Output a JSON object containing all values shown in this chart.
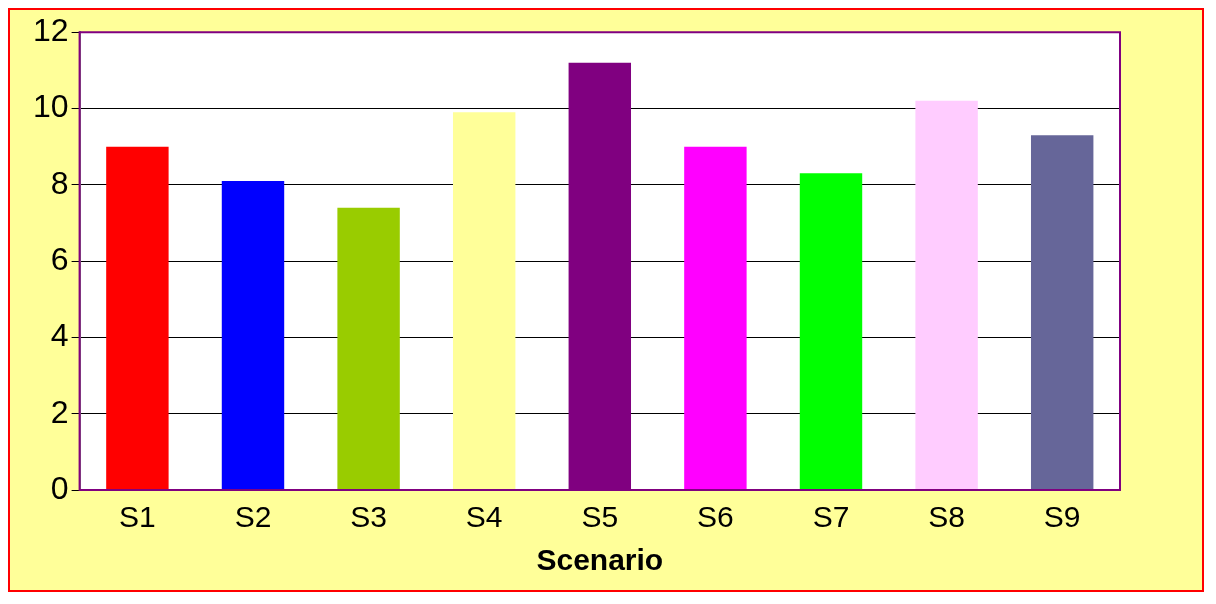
{
  "chart_data": {
    "type": "bar",
    "xlabel": "Scenario",
    "categories": [
      "S1",
      "S2",
      "S3",
      "S4",
      "S5",
      "S6",
      "S7",
      "S8",
      "S9"
    ],
    "values": [
      9,
      8.1,
      7.4,
      9.9,
      11.2,
      9,
      8.3,
      10.2,
      9.3
    ],
    "colors": [
      "#ff0000",
      "#0000ff",
      "#99cc00",
      "#ffff99",
      "#800080",
      "#ff00ff",
      "#00ff00",
      "#ffccff",
      "#666699"
    ],
    "ylim": [
      0,
      12
    ],
    "yticks": [
      0,
      2,
      4,
      6,
      8,
      10,
      12
    ],
    "grid": "y",
    "legend": false
  }
}
